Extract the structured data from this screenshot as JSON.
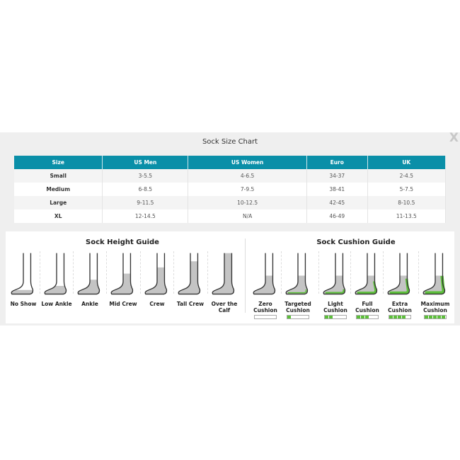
{
  "title": "Sock Size Chart",
  "close_label": "X",
  "table": {
    "headers": [
      "Size",
      "US Men",
      "US Women",
      "Euro",
      "UK"
    ],
    "rows": [
      [
        "Small",
        "3-5.5",
        "4-6.5",
        "34-37",
        "2-4.5"
      ],
      [
        "Medium",
        "6-8.5",
        "7-9.5",
        "38-41",
        "5-7.5"
      ],
      [
        "Large",
        "9-11.5",
        "10-12.5",
        "42-45",
        "8-10.5"
      ],
      [
        "XL",
        "12-14.5",
        "N/A",
        "46-49",
        "11-13.5"
      ]
    ]
  },
  "height_guide": {
    "title": "Sock Height Guide",
    "items": [
      {
        "label": "No Show",
        "fill_level": 0.1
      },
      {
        "label": "Low Ankle",
        "fill_level": 0.2
      },
      {
        "label": "Ankle",
        "fill_level": 0.35
      },
      {
        "label": "Mid Crew",
        "fill_level": 0.5
      },
      {
        "label": "Crew",
        "fill_level": 0.65
      },
      {
        "label": "Tall Crew",
        "fill_level": 0.8
      },
      {
        "label": "Over the Calf",
        "fill_level": 1.0
      }
    ]
  },
  "cushion_guide": {
    "title": "Sock Cushion Guide",
    "items": [
      {
        "label": "Zero Cushion",
        "level": 0
      },
      {
        "label": "Targeted Cushion",
        "level": 1
      },
      {
        "label": "Light Cushion",
        "level": 2
      },
      {
        "label": "Full Cushion",
        "level": 3
      },
      {
        "label": "Extra Cushion",
        "level": 4
      },
      {
        "label": "Maximum Cushion",
        "level": 5
      }
    ],
    "max_level": 5
  },
  "colors": {
    "header": "#0a8fa8",
    "cushion": "#5cbf3a",
    "sock": "#c4c4c4"
  }
}
